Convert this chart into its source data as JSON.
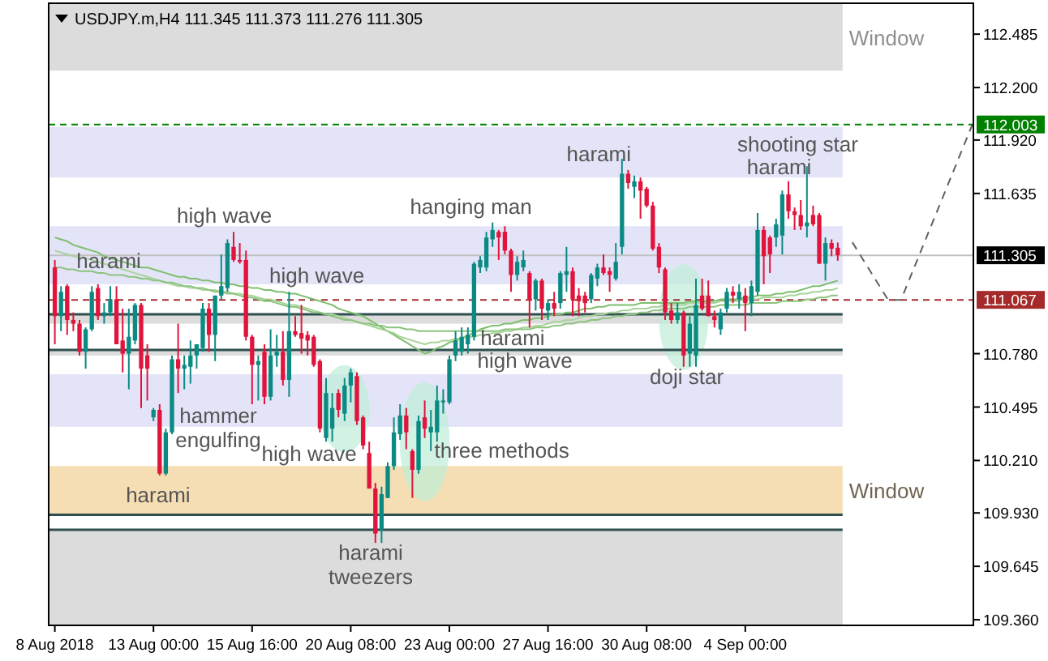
{
  "chart_data": {
    "type": "candlestick",
    "title": "USDJPY.m,H4  111.345 111.373 111.276 111.305",
    "categories": [
      "8 Aug 2018",
      null,
      null,
      null,
      null,
      null,
      null,
      null,
      null,
      null,
      null,
      null,
      null,
      null,
      null,
      null,
      "13 Aug 00:00",
      null,
      null,
      null,
      null,
      null,
      null,
      null,
      null,
      null,
      null,
      null,
      null,
      null,
      null,
      null,
      "15 Aug 16:00",
      null,
      null,
      null,
      null,
      null,
      null,
      null,
      null,
      null,
      null,
      null,
      null,
      null,
      null,
      null,
      "20 Aug 08:00",
      null,
      null,
      null,
      null,
      null,
      null,
      null,
      null,
      null,
      null,
      null,
      null,
      null,
      null,
      null,
      "23 Aug 00:00",
      null,
      null,
      null,
      null,
      null,
      null,
      null,
      null,
      null,
      null,
      null,
      null,
      null,
      null,
      null,
      "27 Aug 16:00",
      null,
      null,
      null,
      null,
      null,
      null,
      null,
      null,
      null,
      null,
      null,
      null,
      null,
      null,
      null,
      "30 Aug 08:00",
      null,
      null,
      null,
      null,
      null,
      null,
      null,
      null,
      null,
      null,
      null,
      null,
      null,
      null,
      null,
      "4 Sep 00:00",
      null,
      null,
      null,
      null,
      null,
      null,
      null,
      null,
      null,
      null,
      null,
      null,
      null,
      null,
      null
    ],
    "ohlc": [
      [
        111.24,
        111.28,
        110.83,
        110.98
      ],
      [
        110.98,
        111.14,
        110.9,
        111.11
      ],
      [
        111.14,
        111.15,
        110.88,
        110.96
      ],
      [
        110.96,
        111.0,
        110.9,
        110.94
      ],
      [
        110.94,
        110.96,
        110.77,
        110.79
      ],
      [
        110.79,
        110.92,
        110.7,
        110.91
      ],
      [
        110.91,
        111.14,
        110.9,
        111.11
      ],
      [
        111.13,
        111.15,
        110.96,
        110.98
      ],
      [
        110.98,
        111.05,
        110.94,
        111.0
      ],
      [
        111.0,
        111.14,
        110.98,
        111.07
      ],
      [
        111.07,
        111.14,
        110.83,
        110.83
      ],
      [
        110.85,
        111.02,
        110.68,
        110.78
      ],
      [
        110.78,
        111.02,
        110.59,
        110.87
      ],
      [
        110.85,
        111.05,
        110.83,
        111.04
      ],
      [
        111.04,
        111.05,
        110.49,
        110.7
      ],
      [
        110.77,
        110.83,
        110.53,
        110.7
      ],
      [
        110.44,
        110.49,
        110.42,
        110.48
      ],
      [
        110.48,
        110.51,
        110.13,
        110.14
      ],
      [
        110.14,
        110.38,
        110.13,
        110.36
      ],
      [
        110.36,
        110.77,
        110.35,
        110.75
      ],
      [
        110.75,
        110.94,
        110.57,
        110.7
      ],
      [
        110.7,
        110.77,
        110.59,
        110.72
      ],
      [
        110.71,
        110.85,
        110.62,
        110.77
      ],
      [
        110.77,
        110.83,
        110.7,
        110.83
      ],
      [
        110.81,
        111.05,
        110.79,
        111.02
      ],
      [
        111.02,
        111.05,
        110.79,
        110.88
      ],
      [
        110.88,
        111.09,
        110.74,
        111.09
      ],
      [
        111.09,
        111.31,
        111.07,
        111.14
      ],
      [
        111.13,
        111.39,
        111.11,
        111.37
      ],
      [
        111.35,
        111.43,
        111.27,
        111.28
      ],
      [
        111.28,
        111.37,
        111.26,
        111.27
      ],
      [
        111.28,
        111.33,
        110.85,
        110.87
      ],
      [
        110.87,
        110.88,
        110.51,
        110.72
      ],
      [
        110.72,
        110.77,
        110.53,
        110.74
      ],
      [
        110.79,
        110.83,
        110.51,
        110.55
      ],
      [
        110.55,
        110.91,
        110.53,
        110.77
      ],
      [
        110.77,
        110.88,
        110.71,
        110.79
      ],
      [
        110.79,
        110.9,
        110.61,
        110.64
      ],
      [
        110.64,
        111.11,
        110.55,
        110.9
      ],
      [
        110.9,
        110.98,
        110.87,
        110.88
      ],
      [
        110.89,
        111.04,
        110.78,
        110.86
      ],
      [
        110.88,
        110.9,
        110.77,
        110.85
      ],
      [
        110.87,
        110.88,
        110.71,
        110.72
      ],
      [
        110.74,
        110.75,
        110.36,
        110.38
      ],
      [
        110.33,
        110.65,
        110.31,
        110.57
      ],
      [
        110.38,
        110.57,
        110.31,
        110.49
      ],
      [
        110.57,
        110.59,
        110.44,
        110.48
      ],
      [
        110.46,
        110.65,
        110.42,
        110.61
      ],
      [
        110.61,
        110.7,
        110.52,
        110.68
      ],
      [
        110.66,
        110.68,
        110.4,
        110.42
      ],
      [
        110.44,
        110.45,
        110.27,
        110.29
      ],
      [
        110.25,
        110.31,
        110.06,
        110.06
      ],
      [
        110.06,
        110.09,
        109.77,
        109.82
      ],
      [
        109.84,
        110.07,
        109.77,
        110.03
      ],
      [
        110.01,
        110.2,
        110.01,
        110.18
      ],
      [
        110.18,
        110.44,
        110.16,
        110.36
      ],
      [
        110.35,
        110.51,
        110.32,
        110.45
      ],
      [
        110.45,
        110.49,
        110.27,
        110.36
      ],
      [
        110.26,
        110.27,
        110.01,
        110.16
      ],
      [
        110.16,
        110.45,
        110.14,
        110.42
      ],
      [
        110.44,
        110.53,
        110.33,
        110.38
      ],
      [
        110.36,
        110.48,
        110.26,
        110.39
      ],
      [
        110.36,
        110.61,
        110.31,
        110.53
      ],
      [
        110.52,
        110.59,
        110.46,
        110.53
      ],
      [
        110.52,
        110.77,
        110.51,
        110.75
      ],
      [
        110.77,
        110.9,
        110.74,
        110.85
      ],
      [
        110.79,
        110.92,
        110.77,
        110.87
      ],
      [
        110.83,
        110.92,
        110.78,
        110.88
      ],
      [
        110.87,
        111.27,
        110.85,
        111.26
      ],
      [
        111.24,
        111.3,
        111.21,
        111.28
      ],
      [
        111.24,
        111.43,
        111.22,
        111.4
      ],
      [
        111.39,
        111.48,
        111.35,
        111.44
      ],
      [
        111.43,
        111.44,
        111.28,
        111.4
      ],
      [
        111.43,
        111.46,
        111.31,
        111.33
      ],
      [
        111.33,
        111.34,
        111.11,
        111.2
      ],
      [
        111.2,
        111.3,
        111.17,
        111.27
      ],
      [
        111.24,
        111.33,
        111.22,
        111.28
      ],
      [
        111.21,
        111.22,
        110.92,
        111.07
      ],
      [
        111.07,
        111.18,
        111.01,
        111.17
      ],
      [
        111.17,
        111.18,
        110.96,
        111.02
      ],
      [
        111.01,
        111.07,
        110.96,
        111.05
      ],
      [
        111.05,
        111.11,
        110.98,
        111.02
      ],
      [
        111.05,
        111.22,
        111.02,
        111.21
      ],
      [
        111.2,
        111.35,
        111.11,
        111.22
      ],
      [
        111.22,
        111.24,
        110.98,
        111.07
      ],
      [
        111.09,
        111.13,
        110.98,
        111.06
      ],
      [
        111.09,
        111.11,
        111.0,
        111.05
      ],
      [
        111.07,
        111.21,
        111.05,
        111.2
      ],
      [
        111.18,
        111.26,
        111.14,
        111.24
      ],
      [
        111.24,
        111.31,
        111.2,
        111.21
      ],
      [
        111.22,
        111.24,
        111.11,
        111.2
      ],
      [
        111.18,
        111.37,
        111.17,
        111.27
      ],
      [
        111.35,
        111.82,
        111.31,
        111.74
      ],
      [
        111.74,
        111.76,
        111.66,
        111.69
      ],
      [
        111.67,
        111.73,
        111.61,
        111.7
      ],
      [
        111.7,
        111.72,
        111.5,
        111.65
      ],
      [
        111.66,
        111.67,
        111.56,
        111.57
      ],
      [
        111.57,
        111.59,
        111.33,
        111.34
      ],
      [
        111.35,
        111.37,
        111.21,
        111.24
      ],
      [
        111.23,
        111.24,
        110.96,
        111.0
      ],
      [
        111.01,
        111.05,
        110.94,
        110.96
      ],
      [
        110.96,
        111.05,
        110.94,
        111.0
      ],
      [
        111.0,
        111.01,
        110.71,
        110.77
      ],
      [
        110.78,
        110.98,
        110.71,
        110.94
      ],
      [
        110.77,
        111.18,
        110.71,
        111.04
      ],
      [
        111.09,
        111.18,
        111.01,
        111.02
      ],
      [
        111.09,
        111.17,
        110.98,
        110.98
      ],
      [
        110.98,
        111.01,
        110.92,
        110.96
      ],
      [
        110.91,
        111.02,
        110.88,
        111.0
      ],
      [
        111.02,
        111.13,
        111.0,
        111.11
      ],
      [
        111.11,
        111.14,
        111.05,
        111.09
      ],
      [
        111.07,
        111.15,
        111.02,
        111.11
      ],
      [
        111.09,
        111.13,
        110.9,
        111.05
      ],
      [
        111.05,
        111.17,
        110.98,
        111.14
      ],
      [
        111.11,
        111.53,
        111.09,
        111.44
      ],
      [
        111.44,
        111.46,
        111.15,
        111.3
      ],
      [
        111.4,
        111.41,
        111.21,
        111.31
      ],
      [
        111.4,
        111.5,
        111.35,
        111.47
      ],
      [
        111.41,
        111.65,
        111.31,
        111.63
      ],
      [
        111.63,
        111.7,
        111.5,
        111.54
      ],
      [
        111.54,
        111.56,
        111.44,
        111.52
      ],
      [
        111.52,
        111.6,
        111.44,
        111.46
      ],
      [
        111.46,
        111.78,
        111.4,
        111.48
      ],
      [
        111.52,
        111.57,
        111.46,
        111.47
      ],
      [
        111.52,
        111.53,
        111.26,
        111.26
      ],
      [
        111.26,
        111.4,
        111.17,
        111.37
      ],
      [
        111.37,
        111.39,
        111.3,
        111.34
      ],
      [
        111.345,
        111.373,
        111.276,
        111.305
      ]
    ],
    "series": [
      {
        "type": "line",
        "color": "#7fbf6f",
        "values": [
          111.4,
          111.39,
          111.38,
          111.36,
          111.35,
          111.34,
          111.33,
          111.32,
          111.3,
          111.29,
          111.28,
          111.27,
          111.26,
          111.25,
          111.24,
          111.24,
          111.23,
          111.22,
          111.21,
          111.2,
          111.19,
          111.19,
          111.18,
          111.18,
          111.17,
          111.17,
          111.16,
          111.16,
          111.15,
          111.15,
          111.14,
          111.14,
          111.13,
          111.13,
          111.12,
          111.12,
          111.11,
          111.11,
          111.1,
          111.1,
          111.09,
          111.08,
          111.07,
          111.06,
          111.05,
          111.04,
          111.02,
          111.01,
          111.0,
          110.99,
          110.98,
          110.96,
          110.94,
          110.92,
          110.9,
          110.88,
          110.86,
          110.84,
          110.82,
          110.8,
          110.78,
          110.79,
          110.81,
          110.82,
          110.84,
          110.85,
          110.86,
          110.88,
          110.89,
          110.91,
          110.92,
          110.93,
          110.93,
          110.94,
          110.94,
          110.95,
          110.96,
          110.96,
          110.97,
          110.97,
          110.98,
          110.99,
          110.99,
          111.0,
          111.0,
          111.01,
          111.02,
          111.02,
          111.03,
          111.03,
          111.04,
          111.04,
          111.04,
          111.04,
          111.04,
          111.05,
          111.05,
          111.05,
          111.05,
          111.05,
          111.05,
          111.05,
          111.05,
          111.06,
          111.06,
          111.06,
          111.06,
          111.06,
          111.07,
          111.07,
          111.07,
          111.07,
          111.08,
          111.08,
          111.09,
          111.09,
          111.09,
          111.1,
          111.1,
          111.11,
          111.11,
          111.12,
          111.13,
          111.14,
          111.14,
          111.15,
          111.16,
          111.17
        ]
      },
      {
        "type": "line",
        "color": "#a8d49a",
        "values": [
          111.33,
          111.32,
          111.31,
          111.3,
          111.29,
          111.29,
          111.28,
          111.27,
          111.26,
          111.25,
          111.24,
          111.23,
          111.22,
          111.21,
          111.2,
          111.19,
          111.18,
          111.17,
          111.16,
          111.15,
          111.14,
          111.14,
          111.13,
          111.13,
          111.12,
          111.12,
          111.12,
          111.11,
          111.11,
          111.1,
          111.1,
          111.09,
          111.09,
          111.08,
          111.07,
          111.07,
          111.06,
          111.05,
          111.04,
          111.04,
          111.03,
          111.02,
          111.01,
          111.0,
          110.99,
          110.99,
          110.98,
          110.97,
          110.96,
          110.95,
          110.94,
          110.93,
          110.92,
          110.91,
          110.9,
          110.89,
          110.87,
          110.86,
          110.85,
          110.84,
          110.83,
          110.84,
          110.84,
          110.85,
          110.85,
          110.86,
          110.86,
          110.87,
          110.87,
          110.88,
          110.88,
          110.89,
          110.89,
          110.9,
          110.9,
          110.91,
          110.92,
          110.92,
          110.93,
          110.93,
          110.94,
          110.95,
          110.95,
          110.96,
          110.96,
          110.97,
          110.98,
          110.98,
          110.99,
          110.99,
          111.0,
          111.0,
          111.01,
          111.01,
          111.02,
          111.02,
          111.02,
          111.03,
          111.03,
          111.04,
          111.04,
          111.04,
          111.04,
          111.05,
          111.05,
          111.05,
          111.05,
          111.05,
          111.06,
          111.06,
          111.06,
          111.06,
          111.07,
          111.07,
          111.07,
          111.08,
          111.08,
          111.08,
          111.08,
          111.09,
          111.09,
          111.1,
          111.1,
          111.11,
          111.11,
          111.12,
          111.12,
          111.13
        ]
      },
      {
        "type": "line",
        "color": "#8cc47e",
        "values": [
          111.24,
          111.24,
          111.23,
          111.23,
          111.22,
          111.22,
          111.22,
          111.21,
          111.21,
          111.2,
          111.2,
          111.2,
          111.19,
          111.19,
          111.18,
          111.18,
          111.17,
          111.17,
          111.16,
          111.16,
          111.15,
          111.14,
          111.14,
          111.13,
          111.13,
          111.12,
          111.11,
          111.11,
          111.1,
          111.1,
          111.09,
          111.08,
          111.08,
          111.07,
          111.06,
          111.06,
          111.05,
          111.04,
          111.03,
          111.03,
          111.02,
          111.01,
          111.0,
          111.0,
          110.99,
          110.98,
          110.97,
          110.96,
          110.96,
          110.95,
          110.94,
          110.94,
          110.93,
          110.93,
          110.92,
          110.92,
          110.92,
          110.91,
          110.91,
          110.9,
          110.9,
          110.9,
          110.9,
          110.9,
          110.9,
          110.9,
          110.9,
          110.9,
          110.9,
          110.9,
          110.9,
          110.9,
          110.9,
          110.91,
          110.91,
          110.91,
          110.91,
          110.91,
          110.92,
          110.92,
          110.92,
          110.93,
          110.93,
          110.94,
          110.94,
          110.95,
          110.95,
          110.96,
          110.96,
          110.97,
          110.97,
          110.98,
          110.98,
          110.99,
          110.99,
          111.0,
          111.0,
          111.01,
          111.01,
          111.02,
          111.02,
          111.02,
          111.02,
          111.03,
          111.03,
          111.03,
          111.03,
          111.03,
          111.04,
          111.04,
          111.04,
          111.04,
          111.04,
          111.05,
          111.05,
          111.05,
          111.05,
          111.05,
          111.06,
          111.06,
          111.06,
          111.06,
          111.07,
          111.07,
          111.08,
          111.08,
          111.09,
          111.09
        ]
      }
    ],
    "ylim": [
      109.33,
      112.65
    ],
    "yticks": [
      {
        "value": 112.485,
        "label": "112.485"
      },
      {
        "value": 112.2,
        "label": "112.200"
      },
      {
        "value": 111.92,
        "label": "111.920"
      },
      {
        "value": 111.635,
        "label": "111.635"
      },
      {
        "value": 110.78,
        "label": "110.780"
      },
      {
        "value": 110.495,
        "label": "110.495"
      },
      {
        "value": 110.21,
        "label": "110.210"
      },
      {
        "value": 109.93,
        "label": "109.930"
      },
      {
        "value": 109.645,
        "label": "109.645"
      },
      {
        "value": 109.36,
        "label": "109.360"
      }
    ],
    "bands": [
      {
        "axis": "y",
        "from": 112.29,
        "to": 112.65,
        "label": "Window",
        "color": "#dcdcdc"
      },
      {
        "axis": "y",
        "from": 111.72,
        "to": 111.99,
        "color": "#e4e4f8"
      },
      {
        "axis": "y",
        "from": 111.15,
        "to": 111.46,
        "color": "#e4e4f8"
      },
      {
        "axis": "y",
        "from": 110.94,
        "to": 110.99,
        "color": "#dcdcdc"
      },
      {
        "axis": "y",
        "from": 110.77,
        "to": 110.8,
        "color": "#dcdcdc"
      },
      {
        "axis": "y",
        "from": 110.39,
        "to": 110.67,
        "color": "#e4e4f8"
      },
      {
        "axis": "y",
        "from": 109.92,
        "to": 110.18,
        "label": "Window",
        "color": "#f5deb3"
      },
      {
        "axis": "y",
        "from": 109.33,
        "to": 109.84,
        "color": "#dcdcdc"
      }
    ],
    "ref_lines": [
      {
        "axis": "y",
        "value": 112.003,
        "label": "112.003",
        "color": "#008000",
        "line_style": "dashed"
      },
      {
        "axis": "y",
        "value": 111.305,
        "label": "111.305",
        "color": "#c0c0c0",
        "line_style": "solid"
      },
      {
        "axis": "y",
        "value": 111.067,
        "label": "111.067",
        "color": "#a52a2a",
        "line_style": "dashed"
      },
      {
        "axis": "y",
        "value": 110.99,
        "color": "#2f4f4f",
        "line_style": "solid"
      },
      {
        "axis": "y",
        "value": 110.8,
        "color": "#2f4f4f",
        "line_style": "solid"
      },
      {
        "axis": "y",
        "value": 109.92,
        "color": "#2f4f4f",
        "line_style": "solid"
      },
      {
        "axis": "y",
        "value": 109.84,
        "color": "#2f4f4f",
        "line_style": "solid"
      }
    ],
    "annotations": [
      "high wave",
      "harami",
      "high wave",
      "hammer\nengulfing",
      "high wave",
      "harami",
      "harami\ntweezers",
      "hanging man",
      "harami",
      "high wave",
      "three methods",
      "harami",
      "doji star",
      "shooting star",
      "harami"
    ]
  }
}
